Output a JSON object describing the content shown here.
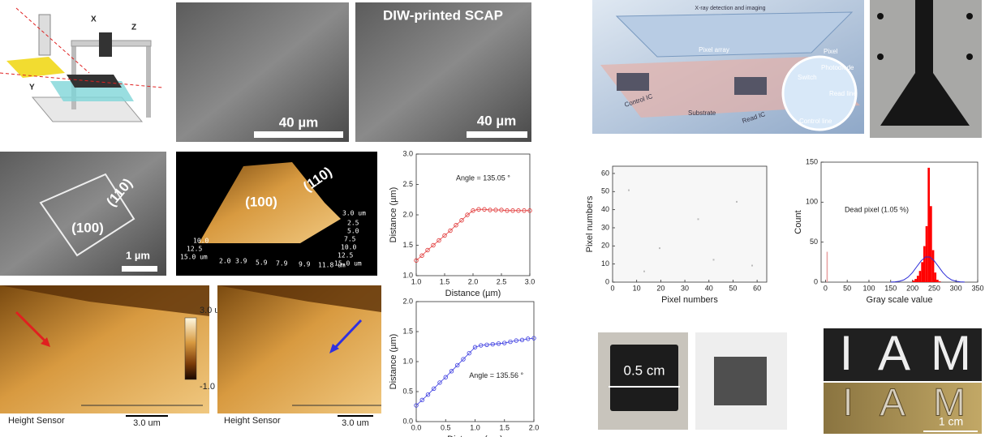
{
  "panels": {
    "printer": {
      "axes": [
        "X",
        "Z",
        "Y"
      ]
    },
    "sem1": {
      "scale": "40 µm"
    },
    "sem2": {
      "title": "DIW-printed SCAP",
      "scale": "40 µm"
    },
    "sem3": {
      "facets": [
        "(110)",
        "(100)"
      ],
      "scale": "1 µm"
    },
    "afm3d": {
      "facets": [
        "(100)",
        "(110)"
      ],
      "x_ticks": [
        "2.0",
        "3.9",
        "5.9",
        "7.9",
        "9.9",
        "11.8 um"
      ],
      "depth_ticks": [
        "15.0 um",
        "12.5",
        "10.0"
      ],
      "right_ticks": [
        "3.0 um",
        "2.5",
        "5.0",
        "7.5",
        "10.0",
        "12.5",
        "15.0 um"
      ]
    },
    "afm_left": {
      "caption": "Height Sensor",
      "scale": "3.0 um"
    },
    "colorbar": {
      "max": "3.0 um",
      "min": "-1.0 um"
    },
    "afm_right": {
      "caption": "Height Sensor",
      "scale": "3.0 um"
    },
    "detector": {
      "title": "X-ray detection and imaging",
      "labels": [
        "Pixel array",
        "Pixel",
        "Photodiode",
        "Switch",
        "Read line",
        "Control line",
        "Control IC",
        "Substrate",
        "Read IC"
      ]
    },
    "chip": {
      "scale": "0.5 cm"
    },
    "iam": {
      "letters": [
        "I",
        "A",
        "M"
      ],
      "scale": "1 cm"
    }
  },
  "chart_data": [
    {
      "type": "line",
      "annotation": "Angle = 135.05 °",
      "x_label": "Distance (µm)",
      "y_label": "Distance (µm)",
      "color": "#e03030",
      "x": [
        1.0,
        1.1,
        1.2,
        1.3,
        1.4,
        1.5,
        1.6,
        1.7,
        1.8,
        1.9,
        2.0,
        2.1,
        2.2,
        2.3,
        2.4,
        2.5,
        2.6,
        2.7,
        2.8,
        2.9,
        3.0
      ],
      "values": [
        1.25,
        1.33,
        1.42,
        1.5,
        1.58,
        1.66,
        1.74,
        1.83,
        1.91,
        2.0,
        2.07,
        2.09,
        2.09,
        2.08,
        2.08,
        2.08,
        2.07,
        2.07,
        2.07,
        2.07,
        2.07
      ],
      "xlim": [
        1.0,
        3.0
      ],
      "ylim": [
        1.0,
        3.0
      ],
      "xticks": [
        {
          "value": 1,
          "label": "1.0"
        },
        1.5,
        {
          "value": 2,
          "label": "2.0"
        },
        2.5,
        {
          "value": 3,
          "label": "3.0"
        }
      ],
      "yticks": [
        {
          "value": 1,
          "label": "1.0"
        },
        1.5,
        {
          "value": 2,
          "label": "2.0"
        },
        2.5,
        {
          "value": 3,
          "label": "3.0"
        }
      ]
    },
    {
      "type": "line",
      "annotation": "Angle = 135.56 °",
      "x_label": "Distance (µm)",
      "y_label": "Distance (µm)",
      "color": "#3a3ae0",
      "x": [
        0.0,
        0.1,
        0.2,
        0.3,
        0.4,
        0.5,
        0.6,
        0.7,
        0.8,
        0.9,
        1.0,
        1.1,
        1.2,
        1.3,
        1.4,
        1.5,
        1.6,
        1.7,
        1.8,
        1.9,
        2.0
      ],
      "values": [
        0.27,
        0.36,
        0.45,
        0.55,
        0.65,
        0.74,
        0.84,
        0.94,
        1.04,
        1.14,
        1.24,
        1.27,
        1.28,
        1.29,
        1.3,
        1.31,
        1.33,
        1.35,
        1.36,
        1.38,
        1.39
      ],
      "xlim": [
        0.0,
        2.0
      ],
      "ylim": [
        0.0,
        2.0
      ],
      "xticks": [
        {
          "value": 0,
          "label": "0.0"
        },
        0.5,
        {
          "value": 1,
          "label": "1.0"
        },
        1.5,
        {
          "value": 2,
          "label": "2.0"
        }
      ],
      "yticks": [
        {
          "value": 0,
          "label": "0.0"
        },
        0.5,
        {
          "value": 1,
          "label": "1.0"
        },
        1.5,
        {
          "value": 2,
          "label": "2.0"
        }
      ]
    },
    {
      "type": "image",
      "x_label": "Pixel numbers",
      "y_label": "Pixel numbers",
      "xlim": [
        0,
        64
      ],
      "ylim": [
        0,
        64
      ],
      "xticks": [
        0,
        10,
        20,
        30,
        40,
        50,
        60
      ],
      "yticks": [
        0,
        10,
        20,
        30,
        40,
        50,
        60
      ]
    },
    {
      "type": "histogram",
      "annotation": "Dead pixel (1.05 %)",
      "x_label": "Gray scale value",
      "y_label": "Count",
      "color": "#ff0000",
      "bins": [
        0,
        5,
        10,
        15,
        20,
        25,
        30,
        35,
        40,
        45,
        50,
        55,
        60,
        65,
        70,
        75,
        80,
        85,
        90,
        95,
        100,
        105,
        110,
        115,
        120,
        125,
        130,
        135,
        140,
        145,
        150,
        155,
        160,
        165,
        170,
        175,
        180,
        185,
        190,
        195,
        200,
        205,
        210,
        215,
        220,
        225,
        230,
        235,
        240,
        245,
        250,
        255,
        260,
        265
      ],
      "counts": [
        38,
        0,
        0,
        0,
        0,
        0,
        0,
        0,
        0,
        0,
        0,
        0,
        0,
        0,
        0,
        0,
        0,
        0,
        0,
        0,
        0,
        0,
        0,
        0,
        0,
        0,
        0,
        0,
        0,
        0,
        0,
        0,
        0,
        0,
        0,
        0,
        0,
        0,
        0,
        0,
        2,
        4,
        8,
        14,
        25,
        45,
        70,
        143,
        95,
        40,
        12,
        3,
        1
      ],
      "fit": {
        "color": "#2a2ad8",
        "x": [
          150,
          160,
          170,
          180,
          190,
          200,
          210,
          220,
          230,
          240,
          250,
          260,
          270,
          280,
          290,
          300,
          310,
          320
        ],
        "values": [
          0.1,
          0.4,
          1.1,
          2.8,
          6.3,
          12.0,
          19.4,
          26.7,
          31.4,
          31.4,
          26.7,
          19.4,
          12.0,
          6.3,
          2.8,
          1.1,
          0.4,
          0.1
        ]
      },
      "xlim": [
        -10,
        350
      ],
      "ylim": [
        0,
        150
      ],
      "xticks": [
        0,
        50,
        100,
        150,
        200,
        250,
        300,
        350
      ],
      "yticks": [
        0,
        50,
        100,
        150
      ]
    }
  ]
}
